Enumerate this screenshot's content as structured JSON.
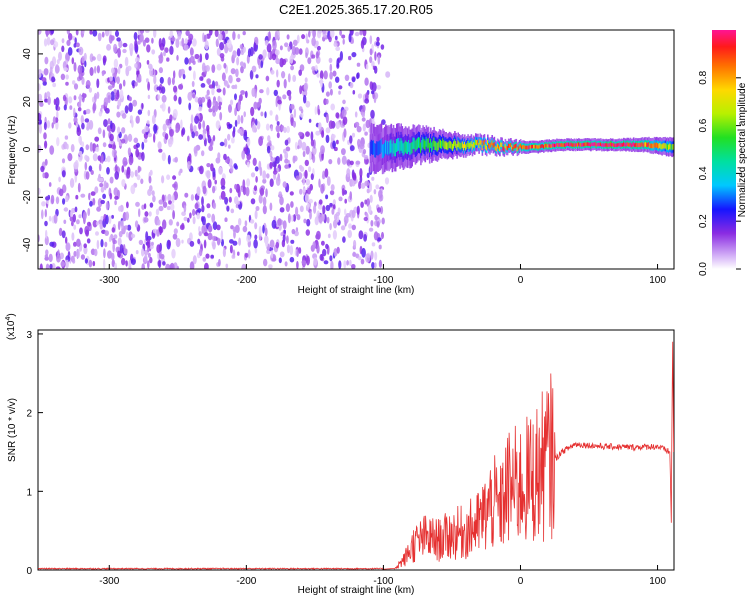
{
  "title": "C2E1.2025.365.17.20.R05",
  "chart_data": [
    {
      "type": "heatmap",
      "xlabel": "Height of straight line (km)",
      "ylabel": "Frequency (Hz)",
      "xlim": [
        -352,
        112
      ],
      "ylim": [
        -50,
        50
      ],
      "x_ticks": [
        -300,
        -200,
        -100,
        0,
        100
      ],
      "y_ticks": [
        -40,
        -20,
        0,
        20,
        40
      ],
      "noise_region": {
        "x": [
          -352,
          -100
        ],
        "description_values": "scattered low-amplitude speckle across all frequencies"
      },
      "signal_band": [
        {
          "x": -110,
          "y": 0,
          "half_width": 10,
          "amp": 0.25
        },
        {
          "x": -90,
          "y": 1,
          "half_width": 9,
          "amp": 0.4
        },
        {
          "x": -70,
          "y": 2,
          "half_width": 7,
          "amp": 0.5
        },
        {
          "x": -50,
          "y": 2,
          "half_width": 5,
          "amp": 0.6
        },
        {
          "x": -30,
          "y": 2,
          "half_width": 3.5,
          "amp": 0.75
        },
        {
          "x": -10,
          "y": 1,
          "half_width": 3,
          "amp": 0.85
        },
        {
          "x": 10,
          "y": 1,
          "half_width": 2.5,
          "amp": 0.9
        },
        {
          "x": 30,
          "y": 2,
          "half_width": 2.5,
          "amp": 0.95
        },
        {
          "x": 50,
          "y": 2,
          "half_width": 2.5,
          "amp": 1.0
        },
        {
          "x": 70,
          "y": 2,
          "half_width": 2.5,
          "amp": 1.0
        },
        {
          "x": 90,
          "y": 2,
          "half_width": 3,
          "amp": 0.9
        },
        {
          "x": 110,
          "y": 1,
          "half_width": 4,
          "amp": 0.6
        }
      ]
    },
    {
      "type": "colorbar",
      "label": "Normalized spectral amplitude",
      "range": [
        0,
        1
      ],
      "ticks": [
        "0.0",
        "0.2",
        "0.4",
        "0.6",
        "0.8"
      ],
      "tick_values": [
        0,
        0.2,
        0.4,
        0.6,
        0.8
      ]
    },
    {
      "type": "line",
      "xlabel": "Height of straight line (km)",
      "ylabel": "SNR (10 * v/v)",
      "multiplier": "(x10",
      "multiplier_exp": "4",
      "multiplier_close": ")",
      "xlim": [
        -352,
        112
      ],
      "ylim": [
        0,
        3.05
      ],
      "x_ticks": [
        -300,
        -200,
        -100,
        0,
        100
      ],
      "y_ticks": [
        0,
        1,
        2,
        3
      ],
      "color": "#e53030",
      "series": [
        {
          "name": "SNR",
          "x": [
            -352,
            -100,
            -92,
            -85,
            -78,
            -70,
            -60,
            -50,
            -40,
            -30,
            -20,
            -15,
            -10,
            0,
            10,
            20,
            30,
            40,
            60,
            80,
            100,
            109,
            110,
            111,
            112
          ],
          "y": [
            0.01,
            0.01,
            0.02,
            0.12,
            0.3,
            0.38,
            0.35,
            0.42,
            0.45,
            0.55,
            0.8,
            0.7,
            0.95,
            1.0,
            1.1,
            1.3,
            1.5,
            1.6,
            1.57,
            1.56,
            1.57,
            1.5,
            0.6,
            3.0,
            1.0
          ]
        }
      ]
    }
  ]
}
